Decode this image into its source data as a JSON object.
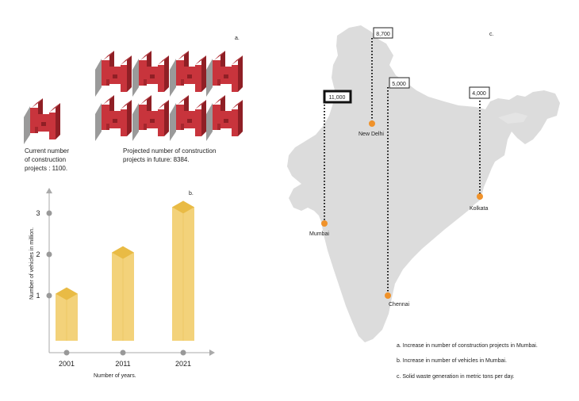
{
  "panel_a": {
    "tag": "a.",
    "current_line1": "Current number",
    "current_line2": "of construction",
    "current_line3": "projects : 1100.",
    "projected_line1": "Projected number of construction",
    "projected_line2": "projects in future: 8384.",
    "colors": {
      "front": "#c8343c",
      "side": "#8f1f25",
      "shadow": "#9a9a9a"
    }
  },
  "panel_b": {
    "tag": "b.",
    "ylabel": "Number of vehicles in million.",
    "xlabel": "Number of years.",
    "bar_color": "#f3d27a",
    "bar_top_color": "#e9bb45"
  },
  "chart_data": {
    "type": "bar",
    "categories": [
      "2001",
      "2011",
      "2021"
    ],
    "values": [
      1.2,
      2.2,
      3.3
    ],
    "yticks": [
      "1",
      "2",
      "3"
    ],
    "ylim": [
      0,
      3.5
    ],
    "xlabel": "Number of years.",
    "ylabel": "Number of vehicles in million."
  },
  "panel_c": {
    "tag": "c.",
    "land_color": "#dcdcdc",
    "marker_color": "#f0922a",
    "cities": [
      {
        "name": "New Delhi",
        "value": "8,700"
      },
      {
        "name": "Mumbai",
        "value": "11,000"
      },
      {
        "name": "Chennai",
        "value": "5,000"
      },
      {
        "name": "Kolkata",
        "value": "4,000"
      }
    ]
  },
  "legend": {
    "a": "a. Increase in number of construction projects in Mumbai.",
    "b": "b. Increase in number of vehicles in Mumbai.",
    "c": "c. Solid waste generation in metric tons per day."
  }
}
